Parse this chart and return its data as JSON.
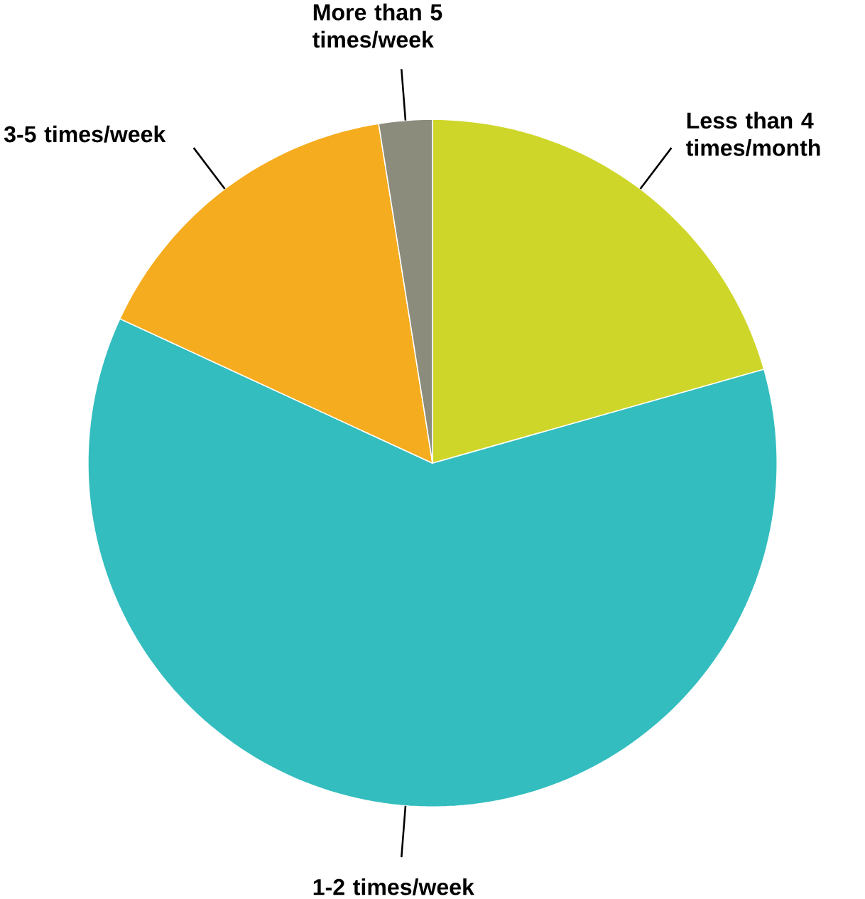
{
  "chart_data": {
    "type": "pie",
    "categories": [
      "Less than 4 times/month",
      "1-2 times/week",
      "3-5 times/week",
      "More than 5 times/week"
    ],
    "values": [
      20.6,
      61.3,
      15.6,
      2.5
    ],
    "colors": [
      "#cfd62a",
      "#33bdbf",
      "#f6ac1f",
      "#8c8c7c"
    ]
  }
}
